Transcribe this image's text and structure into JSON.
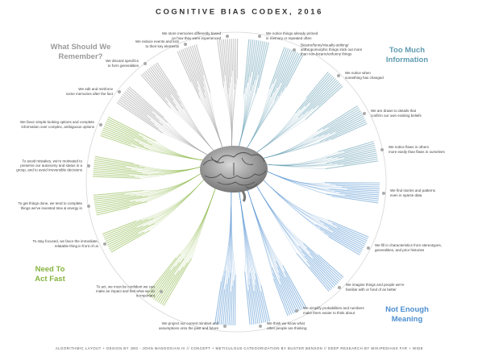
{
  "title": "COGNITIVE BIAS CODEX, 2016",
  "sections": [
    {
      "label": [
        "Too Much",
        "Information"
      ],
      "color": "#5f9bb0",
      "groups": [
        {
          "lines": [
            "We notice things already primed",
            "in memory or repeated often"
          ]
        },
        {
          "lines": [
            "Bizarre/funny/visually-striking/",
            "anthropomorphic things stick out more",
            "than non-bizarre/unfunny things"
          ]
        },
        {
          "lines": [
            "We notice when",
            "something has changed"
          ]
        },
        {
          "lines": [
            "We are drawn to details that",
            "confirm our own existing beliefs"
          ]
        },
        {
          "lines": [
            "We notice flaws in others",
            "more easily than flaws in ourselves"
          ]
        }
      ]
    },
    {
      "label": [
        "Not Enough",
        "Meaning"
      ],
      "color": "#4d8fcf",
      "groups": [
        {
          "lines": [
            "We find stories and patterns",
            "even in sparse data"
          ]
        },
        {
          "lines": [
            "We fill in characteristics from stereotypes,",
            "generalities, and prior histories"
          ]
        },
        {
          "lines": [
            "We imagine things and people we're",
            "familiar with or fond of as better"
          ]
        },
        {
          "lines": [
            "We simplify probabilities and numbers",
            "make them easier to think about"
          ]
        },
        {
          "lines": [
            "We think we know what",
            "other people are thinking"
          ]
        },
        {
          "lines": [
            "We project our current mindset and",
            "assumptions onto the past and future"
          ]
        }
      ]
    },
    {
      "label": [
        "Need To",
        "Act Fast"
      ],
      "color": "#86b43f",
      "groups": [
        {
          "lines": [
            "To act, we must be confident we can",
            "make an impact and feel what we do",
            "is important"
          ]
        },
        {
          "lines": [
            "To stay focused, we favor the immediate,",
            "relatable thing in front of us"
          ]
        },
        {
          "lines": [
            "To get things done, we tend to complete",
            "things we've invested time & energy in"
          ]
        },
        {
          "lines": [
            "To avoid mistakes, we're motivated to",
            "preserve our autonomy and status in a",
            "group, and to avoid irreversible decisions"
          ]
        },
        {
          "lines": [
            "We favor simple-looking options and complete",
            "information over complex, ambiguous options"
          ]
        }
      ]
    },
    {
      "label": [
        "What Should We",
        "Remember?"
      ],
      "color": "#9a9a9a",
      "groups": [
        {
          "lines": [
            "We edit and reinforce",
            "some memories after the fact"
          ]
        },
        {
          "lines": [
            "We discard specifics",
            "to form generalities"
          ]
        },
        {
          "lines": [
            "We reduce events and lists",
            "to their key elements"
          ]
        },
        {
          "lines": [
            "We store memories differently based",
            "on how they were experienced"
          ]
        }
      ]
    }
  ],
  "footer": "ALGORITHMIC LAYOUT + DESIGN BY JM3 - JOHN MANOOGIAN III // CONCEPT + METICULOUS CATEGORIZATION BY BUSTER BENSON // DEEP RESEARCH BY WIKIPEDIANS FAR + WIDE"
}
